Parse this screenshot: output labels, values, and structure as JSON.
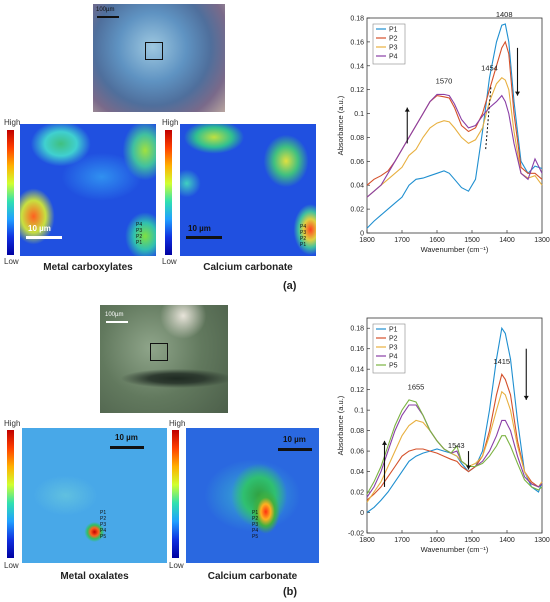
{
  "panel_a": {
    "tag": "(a)",
    "micro_scale": "100µm",
    "colorbar_high": "High",
    "colorbar_low": "Low",
    "map1": {
      "label": "Metal carboxylates",
      "scale": "10 µm",
      "points": [
        "P4",
        "P3",
        "P2",
        "P1"
      ]
    },
    "map2": {
      "label": "Calcium carbonate",
      "scale": "10 µm",
      "points": [
        "P4",
        "P3",
        "P2",
        "P1"
      ]
    }
  },
  "panel_b": {
    "tag": "(b)",
    "micro_scale": "100µm",
    "colorbar_high": "High",
    "colorbar_low": "Low",
    "map1": {
      "label": "Metal oxalates",
      "scale": "10 µm",
      "points": [
        "P1",
        "P2",
        "P3",
        "P4",
        "P5"
      ]
    },
    "map2": {
      "label": "Calcium carbonate",
      "scale": "10 µm",
      "points": [
        "P1",
        "P2",
        "P3",
        "P4",
        "P5"
      ]
    }
  },
  "colors": {
    "P1": "#1f8fd0",
    "P2": "#d4502a",
    "P3": "#e8b040",
    "P4": "#8a3fa6",
    "P5": "#7cb342"
  },
  "chart_data": [
    {
      "type": "line",
      "xlabel": "Wavenumber (cm⁻¹)",
      "ylabel": "Absorbance (a.u.)",
      "xlim": [
        1800,
        1300
      ],
      "ylim": [
        0,
        0.18
      ],
      "xticks": [
        1800,
        1700,
        1600,
        1500,
        1400,
        1300
      ],
      "yticks": [
        0,
        0.02,
        0.04,
        0.06,
        0.08,
        0.1,
        0.12,
        0.14,
        0.16,
        0.18
      ],
      "legend_position": "top-left",
      "annotations": [
        {
          "text": "1408",
          "x": 1408,
          "y": 0.181
        },
        {
          "text": "1570",
          "x": 1580,
          "y": 0.125
        },
        {
          "text": "1454",
          "x": 1450,
          "y": 0.136
        }
      ],
      "arrows": [
        {
          "x": 1685,
          "y_from": 0.075,
          "y_to": 0.105,
          "dir": "up"
        },
        {
          "x": 1370,
          "y_from": 0.155,
          "y_to": 0.115,
          "dir": "down"
        }
      ],
      "dashed_line": {
        "x_from": 1446,
        "y_from": 0.122,
        "x_to": 1461,
        "y_to": 0.07
      },
      "x": [
        1800,
        1780,
        1760,
        1740,
        1720,
        1700,
        1680,
        1660,
        1640,
        1620,
        1600,
        1580,
        1565,
        1550,
        1530,
        1510,
        1490,
        1470,
        1450,
        1430,
        1415,
        1405,
        1395,
        1380,
        1360,
        1340,
        1320,
        1300
      ],
      "series": [
        {
          "name": "P1",
          "values": [
            0.004,
            0.01,
            0.015,
            0.02,
            0.025,
            0.03,
            0.04,
            0.045,
            0.046,
            0.048,
            0.05,
            0.052,
            0.05,
            0.045,
            0.038,
            0.035,
            0.045,
            0.085,
            0.13,
            0.16,
            0.174,
            0.175,
            0.16,
            0.11,
            0.06,
            0.05,
            0.056,
            0.054
          ]
        },
        {
          "name": "P2",
          "values": [
            0.04,
            0.045,
            0.048,
            0.052,
            0.06,
            0.07,
            0.08,
            0.09,
            0.1,
            0.11,
            0.115,
            0.114,
            0.113,
            0.105,
            0.09,
            0.085,
            0.088,
            0.1,
            0.12,
            0.14,
            0.155,
            0.16,
            0.15,
            0.1,
            0.055,
            0.05,
            0.05,
            0.045
          ]
        },
        {
          "name": "P3",
          "values": [
            0.03,
            0.035,
            0.04,
            0.045,
            0.05,
            0.055,
            0.065,
            0.07,
            0.08,
            0.088,
            0.092,
            0.094,
            0.093,
            0.088,
            0.08,
            0.075,
            0.078,
            0.088,
            0.11,
            0.125,
            0.13,
            0.128,
            0.12,
            0.085,
            0.05,
            0.046,
            0.048,
            0.04
          ]
        },
        {
          "name": "P4",
          "values": [
            0.03,
            0.035,
            0.04,
            0.05,
            0.06,
            0.07,
            0.08,
            0.09,
            0.1,
            0.11,
            0.116,
            0.116,
            0.115,
            0.108,
            0.095,
            0.088,
            0.09,
            0.098,
            0.105,
            0.11,
            0.115,
            0.11,
            0.1,
            0.075,
            0.05,
            0.045,
            0.062,
            0.05
          ]
        }
      ]
    },
    {
      "type": "line",
      "xlabel": "Wavenumber (cm⁻¹)",
      "ylabel": "Absorbance (a.u.)",
      "xlim": [
        1800,
        1300
      ],
      "ylim": [
        -0.02,
        0.19
      ],
      "xticks": [
        1800,
        1700,
        1600,
        1500,
        1400,
        1300
      ],
      "yticks": [
        -0.02,
        0,
        0.02,
        0.04,
        0.06,
        0.08,
        0.1,
        0.12,
        0.14,
        0.16,
        0.18
      ],
      "legend_position": "top-left",
      "annotations": [
        {
          "text": "1415",
          "x": 1415,
          "y": 0.145
        },
        {
          "text": "1655",
          "x": 1660,
          "y": 0.12
        },
        {
          "text": "1543",
          "x": 1545,
          "y": 0.063
        }
      ],
      "arrows": [
        {
          "x": 1750,
          "y_from": 0.025,
          "y_to": 0.07,
          "dir": "up"
        },
        {
          "x": 1510,
          "y_from": 0.06,
          "y_to": 0.042,
          "dir": "down"
        },
        {
          "x": 1345,
          "y_from": 0.16,
          "y_to": 0.11,
          "dir": "down"
        }
      ],
      "x": [
        1800,
        1780,
        1760,
        1740,
        1720,
        1700,
        1680,
        1660,
        1640,
        1620,
        1600,
        1580,
        1560,
        1543,
        1530,
        1510,
        1490,
        1470,
        1450,
        1430,
        1415,
        1405,
        1390,
        1370,
        1350,
        1330,
        1310,
        1300
      ],
      "series": [
        {
          "name": "P1",
          "values": [
            0.0,
            0.005,
            0.012,
            0.02,
            0.03,
            0.04,
            0.05,
            0.055,
            0.058,
            0.06,
            0.062,
            0.06,
            0.058,
            0.055,
            0.048,
            0.04,
            0.045,
            0.06,
            0.1,
            0.15,
            0.18,
            0.175,
            0.15,
            0.09,
            0.04,
            0.025,
            0.02,
            0.03
          ]
        },
        {
          "name": "P2",
          "values": [
            0.012,
            0.018,
            0.025,
            0.035,
            0.045,
            0.055,
            0.06,
            0.062,
            0.062,
            0.06,
            0.058,
            0.055,
            0.052,
            0.05,
            0.045,
            0.04,
            0.045,
            0.055,
            0.08,
            0.115,
            0.135,
            0.13,
            0.115,
            0.07,
            0.04,
            0.03,
            0.025,
            0.03
          ]
        },
        {
          "name": "P3",
          "values": [
            0.01,
            0.02,
            0.03,
            0.045,
            0.06,
            0.075,
            0.085,
            0.09,
            0.088,
            0.08,
            0.07,
            0.062,
            0.058,
            0.055,
            0.05,
            0.045,
            0.048,
            0.055,
            0.075,
            0.1,
            0.118,
            0.115,
            0.1,
            0.065,
            0.04,
            0.028,
            0.025,
            0.03
          ]
        },
        {
          "name": "P4",
          "values": [
            0.015,
            0.025,
            0.04,
            0.06,
            0.08,
            0.095,
            0.105,
            0.105,
            0.095,
            0.08,
            0.07,
            0.062,
            0.058,
            0.06,
            0.05,
            0.045,
            0.045,
            0.05,
            0.06,
            0.075,
            0.09,
            0.09,
            0.08,
            0.055,
            0.035,
            0.028,
            0.025,
            0.028
          ]
        },
        {
          "name": "P5",
          "values": [
            0.018,
            0.03,
            0.045,
            0.065,
            0.085,
            0.1,
            0.11,
            0.108,
            0.095,
            0.08,
            0.07,
            0.062,
            0.058,
            0.065,
            0.05,
            0.045,
            0.045,
            0.048,
            0.055,
            0.065,
            0.075,
            0.075,
            0.065,
            0.048,
            0.032,
            0.025,
            0.022,
            0.025
          ]
        }
      ]
    }
  ]
}
